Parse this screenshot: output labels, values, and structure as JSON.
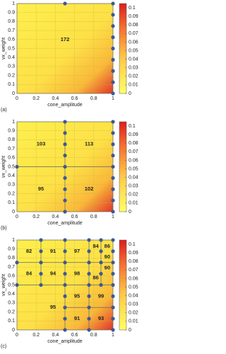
{
  "chart_data": [
    {
      "type": "heatmap",
      "caption": "(a)",
      "xlabel": "cone_amplitude",
      "ylabel": "vx_weight",
      "xlim": [
        0,
        1
      ],
      "ylim": [
        0,
        1
      ],
      "xticks": [
        0,
        0.2,
        0.4,
        0.6,
        0.8,
        1
      ],
      "yticks": [
        0,
        0.1,
        0.2,
        0.3,
        0.4,
        0.5,
        0.6,
        0.7,
        0.8,
        0.9,
        1
      ],
      "clim": [
        0,
        0.105
      ],
      "cticks": [
        0,
        0.01,
        0.02,
        0.03,
        0.04,
        0.05,
        0.06,
        0.07,
        0.08,
        0.09,
        0.1
      ],
      "regions": [
        {
          "label": 172,
          "x": 0.5,
          "y": 0.6
        }
      ],
      "partitions": [],
      "points": {
        "x": [
          1,
          1,
          1,
          1,
          1,
          1,
          1,
          1,
          1,
          0.5
        ],
        "y": [
          0,
          0.125,
          0.25,
          0.375,
          0.5,
          0.625,
          0.75,
          0.875,
          1,
          1
        ]
      },
      "point_color": "#3b5998"
    },
    {
      "type": "heatmap",
      "caption": "(b)",
      "xlabel": "cone_amplitude",
      "ylabel": "vx_weight",
      "xlim": [
        0,
        1
      ],
      "ylim": [
        0,
        1
      ],
      "xticks": [
        0,
        0.2,
        0.4,
        0.6,
        0.8,
        1
      ],
      "yticks": [
        0,
        0.1,
        0.2,
        0.3,
        0.4,
        0.5,
        0.6,
        0.7,
        0.8,
        0.9,
        1
      ],
      "clim": [
        0,
        0.105
      ],
      "cticks": [
        0,
        0.01,
        0.02,
        0.03,
        0.04,
        0.05,
        0.06,
        0.07,
        0.08,
        0.09,
        0.1
      ],
      "regions": [
        {
          "label": 103,
          "x": 0.25,
          "y": 0.75
        },
        {
          "label": 113,
          "x": 0.75,
          "y": 0.75
        },
        {
          "label": 95,
          "x": 0.25,
          "y": 0.25
        },
        {
          "label": 102,
          "x": 0.75,
          "y": 0.25
        }
      ],
      "partitions": [
        {
          "x": [
            0.5,
            0.5
          ],
          "y": [
            0,
            1
          ]
        },
        {
          "x": [
            0,
            1
          ],
          "y": [
            0.5,
            0.5
          ]
        }
      ],
      "points": {
        "x": [
          0.5,
          0.5,
          0.5,
          0.5,
          0.5,
          0.5,
          0.5,
          0.5,
          0.5,
          1,
          1,
          1,
          1,
          1,
          1,
          1,
          1,
          1,
          0
        ],
        "y": [
          0,
          0.125,
          0.25,
          0.375,
          0.5,
          0.625,
          0.75,
          0.875,
          1,
          0,
          0.125,
          0.25,
          0.375,
          0.5,
          0.625,
          0.75,
          0.875,
          1,
          0.5
        ]
      },
      "point_color": "#3b5998"
    },
    {
      "type": "heatmap",
      "caption": "(c)",
      "xlabel": "cone_amplitude",
      "ylabel": "vx_weight",
      "xlim": [
        0,
        1
      ],
      "ylim": [
        0,
        1
      ],
      "xticks": [
        0,
        0.2,
        0.4,
        0.6,
        0.8,
        1
      ],
      "yticks": [
        0,
        0.1,
        0.2,
        0.3,
        0.4,
        0.5,
        0.6,
        0.7,
        0.8,
        0.9,
        1
      ],
      "clim": [
        0,
        0.105
      ],
      "cticks": [
        0,
        0.01,
        0.02,
        0.03,
        0.04,
        0.05,
        0.06,
        0.07,
        0.08,
        0.09,
        0.1
      ],
      "regions": [
        {
          "label": 82,
          "x": 0.125,
          "y": 0.875
        },
        {
          "label": 91,
          "x": 0.375,
          "y": 0.875
        },
        {
          "label": 97,
          "x": 0.625,
          "y": 0.875
        },
        {
          "label": 84,
          "x": 0.125,
          "y": 0.625
        },
        {
          "label": 94,
          "x": 0.375,
          "y": 0.625
        },
        {
          "label": 98,
          "x": 0.625,
          "y": 0.625
        },
        {
          "label": 95,
          "x": 0.375,
          "y": 0.25
        },
        {
          "label": 95,
          "x": 0.625,
          "y": 0.375
        },
        {
          "label": 99,
          "x": 0.875,
          "y": 0.375
        },
        {
          "label": 91,
          "x": 0.625,
          "y": 0.125
        },
        {
          "label": 93,
          "x": 0.875,
          "y": 0.125
        },
        {
          "label": 84,
          "x": 0.82,
          "y": 0.93
        },
        {
          "label": 86,
          "x": 0.94,
          "y": 0.93
        },
        {
          "label": 90,
          "x": 0.94,
          "y": 0.81
        },
        {
          "label": 90,
          "x": 0.94,
          "y": 0.69
        },
        {
          "label": 86,
          "x": 0.82,
          "y": 0.58
        }
      ],
      "partitions": [
        {
          "x": [
            0.25,
            0.25
          ],
          "y": [
            0.5,
            1
          ]
        },
        {
          "x": [
            0.5,
            0.5
          ],
          "y": [
            0,
            1
          ]
        },
        {
          "x": [
            0.75,
            0.75
          ],
          "y": [
            0,
            1
          ]
        },
        {
          "x": [
            0,
            1
          ],
          "y": [
            0.5,
            0.5
          ]
        },
        {
          "x": [
            0,
            0.75
          ],
          "y": [
            0.75,
            0.75
          ]
        },
        {
          "x": [
            0.5,
            1
          ],
          "y": [
            0.25,
            0.25
          ]
        },
        {
          "x": [
            0.875,
            0.875
          ],
          "y": [
            0.5,
            1
          ]
        },
        {
          "x": [
            0.75,
            1
          ],
          "y": [
            0.75,
            0.75
          ]
        }
      ],
      "points": {
        "x": [
          0.25,
          0.25,
          0.25,
          0.25,
          0.25,
          0.5,
          0.5,
          0.5,
          0.5,
          0.5,
          0.5,
          0.5,
          0.5,
          0.5,
          0.75,
          0.75,
          0.75,
          0.75,
          0.75,
          0.75,
          0.75,
          0.75,
          0.75,
          1,
          1,
          1,
          1,
          1,
          1,
          1,
          1,
          1,
          0.875,
          0.875,
          0.875,
          0.875,
          0.875,
          0,
          0
        ],
        "y": [
          0.5,
          0.625,
          0.75,
          0.875,
          1,
          0,
          0.125,
          0.25,
          0.375,
          0.5,
          0.625,
          0.75,
          0.875,
          1,
          0,
          0.125,
          0.25,
          0.375,
          0.5,
          0.625,
          0.75,
          0.875,
          1,
          0,
          0.125,
          0.25,
          0.375,
          0.5,
          0.625,
          0.75,
          0.875,
          1,
          0.5,
          0.625,
          0.75,
          0.875,
          1,
          0.5,
          0.75
        ]
      },
      "point_color": "#3b5998"
    }
  ]
}
